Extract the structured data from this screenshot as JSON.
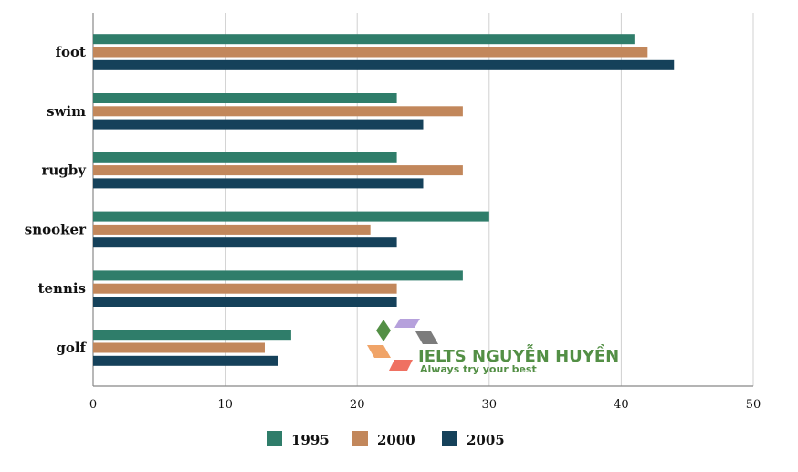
{
  "chart_data": {
    "type": "bar",
    "orientation": "horizontal",
    "title": "",
    "xlabel": "",
    "ylabel": "",
    "categories": [
      "foot",
      "swim",
      "rugby",
      "snooker",
      "tennis",
      "golf"
    ],
    "series": [
      {
        "name": "1995",
        "color": "#2f7d6a",
        "values": [
          41,
          23,
          23,
          30,
          28,
          15
        ]
      },
      {
        "name": "2000",
        "color": "#c2875b",
        "values": [
          42,
          28,
          28,
          21,
          23,
          13
        ]
      },
      {
        "name": "2005",
        "color": "#15415a",
        "values": [
          44,
          25,
          25,
          23,
          23,
          14
        ]
      }
    ],
    "xlim": [
      0,
      50
    ],
    "xticks": [
      "0",
      "10",
      "20",
      "30",
      "40",
      "50"
    ],
    "grid": true,
    "legend_position": "bottom-center"
  },
  "watermark": {
    "letters": [
      "L",
      "T",
      "S",
      "E",
      "I"
    ],
    "title": "IELTS NGUYỄN HUYỀN",
    "slogan": "Always try your best"
  }
}
